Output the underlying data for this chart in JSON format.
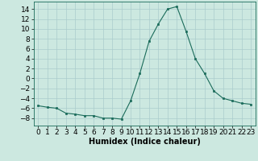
{
  "x": [
    0,
    1,
    2,
    3,
    4,
    5,
    6,
    7,
    8,
    9,
    10,
    11,
    12,
    13,
    14,
    15,
    16,
    17,
    18,
    19,
    20,
    21,
    22,
    23
  ],
  "y": [
    -5.5,
    -5.8,
    -6.0,
    -7.0,
    -7.2,
    -7.5,
    -7.5,
    -8.0,
    -8.0,
    -8.2,
    -4.5,
    1.0,
    7.5,
    11.0,
    14.0,
    14.5,
    9.5,
    4.0,
    1.0,
    -2.5,
    -4.0,
    -4.5,
    -5.0,
    -5.2
  ],
  "line_color": "#1a6b5a",
  "marker": "s",
  "marker_size": 2.0,
  "bg_color": "#cce8e0",
  "grid_color": "#aacccc",
  "xlabel": "Humidex (Indice chaleur)",
  "ylim": [
    -9.5,
    15.5
  ],
  "xlim": [
    -0.5,
    23.5
  ],
  "yticks": [
    -8,
    -6,
    -4,
    -2,
    0,
    2,
    4,
    6,
    8,
    10,
    12,
    14
  ],
  "xticks": [
    0,
    1,
    2,
    3,
    4,
    5,
    6,
    7,
    8,
    9,
    10,
    11,
    12,
    13,
    14,
    15,
    16,
    17,
    18,
    19,
    20,
    21,
    22,
    23
  ],
  "xlabel_fontsize": 7,
  "tick_fontsize": 6.5
}
